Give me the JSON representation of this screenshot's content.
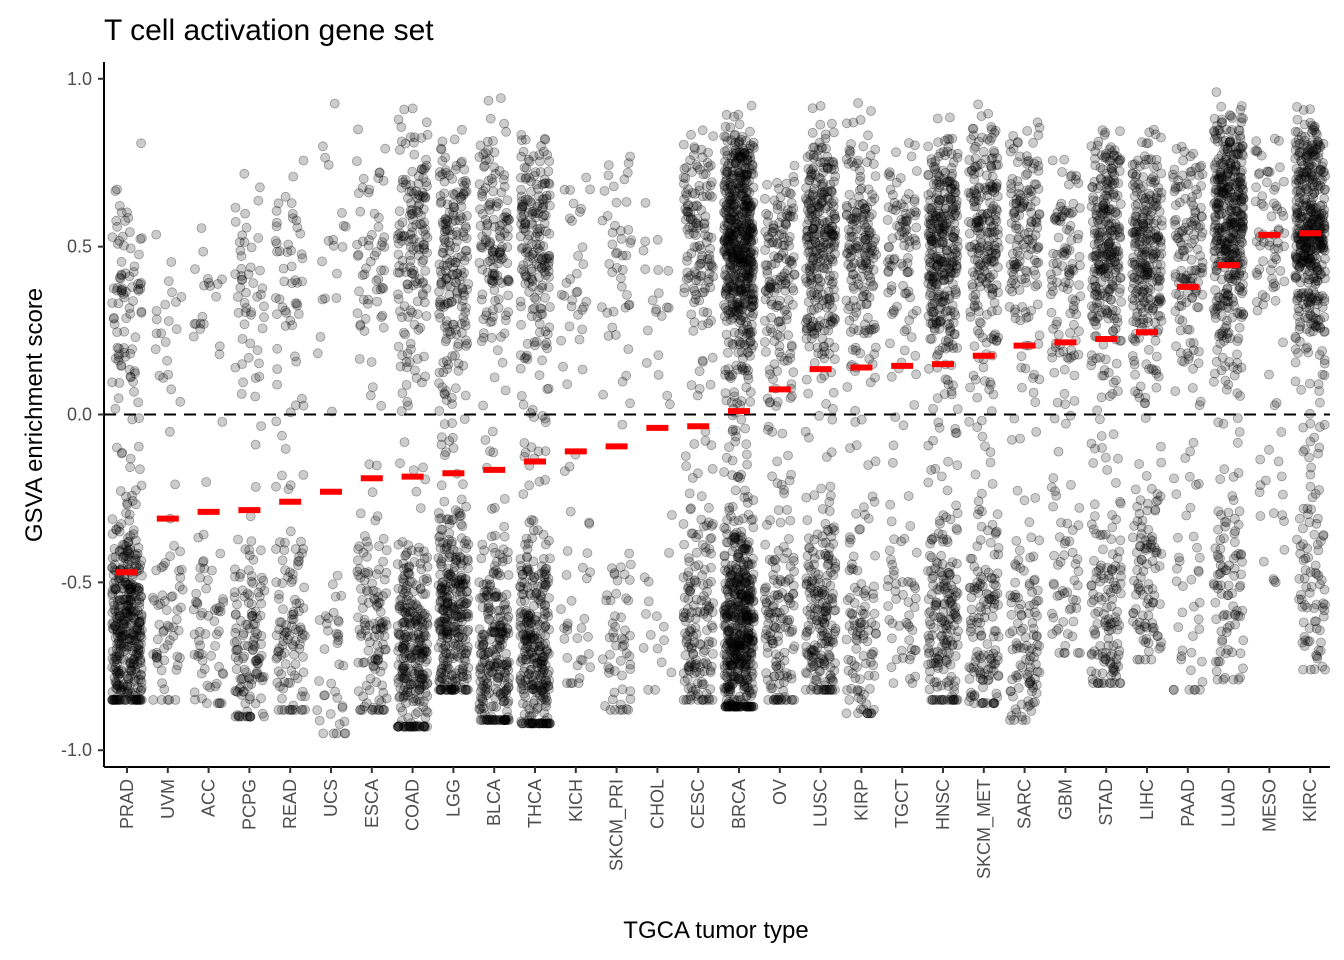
{
  "chart_data": {
    "type": "scatter",
    "subtype": "jittered strip plot with median markers",
    "title": "T cell activation gene set",
    "xlabel": "TGCA tumor type",
    "ylabel": "GSVA enrichment score",
    "ylim": [
      -1.05,
      1.05
    ],
    "yticks": [
      -1.0,
      -0.5,
      0.0,
      0.5,
      1.0
    ],
    "ytick_labels": [
      "-1.0",
      "-0.5",
      "0.0",
      "0.5",
      "1.0"
    ],
    "reference_line": {
      "y": 0,
      "style": "dashed",
      "color": "#000000"
    },
    "grid": false,
    "legend": "none",
    "point_color": "#000000",
    "point_alpha": 0.2,
    "median_color": "#ff0000",
    "categories": [
      "PRAD",
      "UVM",
      "ACC",
      "PCPG",
      "READ",
      "UCS",
      "ESCA",
      "COAD",
      "LGG",
      "BLCA",
      "THCA",
      "KICH",
      "SKCM_PRI",
      "CHOL",
      "CESC",
      "BRCA",
      "OV",
      "LUSC",
      "KIRP",
      "TGCT",
      "HNSC",
      "SKCM_MET",
      "SARC",
      "GBM",
      "STAD",
      "LIHC",
      "PAAD",
      "LUAD",
      "MESO",
      "KIRC"
    ],
    "medians": [
      -0.47,
      -0.31,
      -0.29,
      -0.285,
      -0.26,
      -0.23,
      -0.19,
      -0.185,
      -0.175,
      -0.165,
      -0.14,
      -0.11,
      -0.095,
      -0.04,
      -0.035,
      0.01,
      0.075,
      0.135,
      0.14,
      0.145,
      0.15,
      0.175,
      0.205,
      0.215,
      0.225,
      0.245,
      0.38,
      0.445,
      0.535,
      0.54
    ],
    "sample_counts": [
      490,
      80,
      79,
      180,
      160,
      57,
      180,
      450,
      510,
      400,
      510,
      66,
      100,
      36,
      300,
      1100,
      300,
      500,
      290,
      150,
      520,
      370,
      260,
      160,
      410,
      370,
      180,
      510,
      86,
      530
    ],
    "ranges": [
      [
        -0.85,
        0.82
      ],
      [
        -0.85,
        0.72
      ],
      [
        -0.86,
        0.75
      ],
      [
        -0.9,
        0.77
      ],
      [
        -0.88,
        0.8
      ],
      [
        -0.95,
        0.95
      ],
      [
        -0.88,
        0.9
      ],
      [
        -0.93,
        0.94
      ],
      [
        -0.82,
        0.87
      ],
      [
        -0.91,
        0.95
      ],
      [
        -0.92,
        0.9
      ],
      [
        -0.8,
        0.8
      ],
      [
        -0.88,
        0.84
      ],
      [
        -0.82,
        0.73
      ],
      [
        -0.85,
        0.95
      ],
      [
        -0.87,
        0.92
      ],
      [
        -0.85,
        0.8
      ],
      [
        -0.82,
        0.93
      ],
      [
        -0.89,
        0.93
      ],
      [
        -0.8,
        0.9
      ],
      [
        -0.85,
        0.9
      ],
      [
        -0.86,
        0.94
      ],
      [
        -0.91,
        0.94
      ],
      [
        -0.71,
        0.88
      ],
      [
        -0.8,
        0.93
      ],
      [
        -0.73,
        0.91
      ],
      [
        -0.82,
        0.9
      ],
      [
        -0.79,
        0.98
      ],
      [
        -0.5,
        0.95
      ],
      [
        -0.76,
        0.96
      ]
    ]
  }
}
